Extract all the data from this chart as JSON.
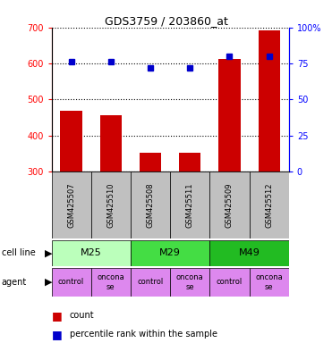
{
  "title": "GDS3759 / 203860_at",
  "samples": [
    "GSM425507",
    "GSM425510",
    "GSM425508",
    "GSM425511",
    "GSM425509",
    "GSM425512"
  ],
  "counts": [
    468,
    457,
    352,
    352,
    612,
    693
  ],
  "percentile_ranks": [
    76,
    76,
    72,
    72,
    80,
    80
  ],
  "ymin": 300,
  "ymax": 700,
  "y_ticks": [
    300,
    400,
    500,
    600,
    700
  ],
  "y2_ticks": [
    0,
    25,
    50,
    75,
    100
  ],
  "cell_lines": [
    {
      "label": "M25",
      "start": 0,
      "end": 2,
      "color": "#BBFFBB"
    },
    {
      "label": "M29",
      "start": 2,
      "end": 4,
      "color": "#44DD44"
    },
    {
      "label": "M49",
      "start": 4,
      "end": 6,
      "color": "#22BB22"
    }
  ],
  "agents": [
    {
      "label": "control",
      "col": 0
    },
    {
      "label": "oncona\nse",
      "col": 1
    },
    {
      "label": "control",
      "col": 2
    },
    {
      "label": "oncona\nse",
      "col": 3
    },
    {
      "label": "control",
      "col": 4
    },
    {
      "label": "oncona\nse",
      "col": 5
    }
  ],
  "bar_color": "#CC0000",
  "dot_color": "#0000CC",
  "sample_bg_color": "#C0C0C0",
  "agent_color": "#DD88EE",
  "legend_count_color": "#CC0000",
  "legend_dot_color": "#0000CC"
}
